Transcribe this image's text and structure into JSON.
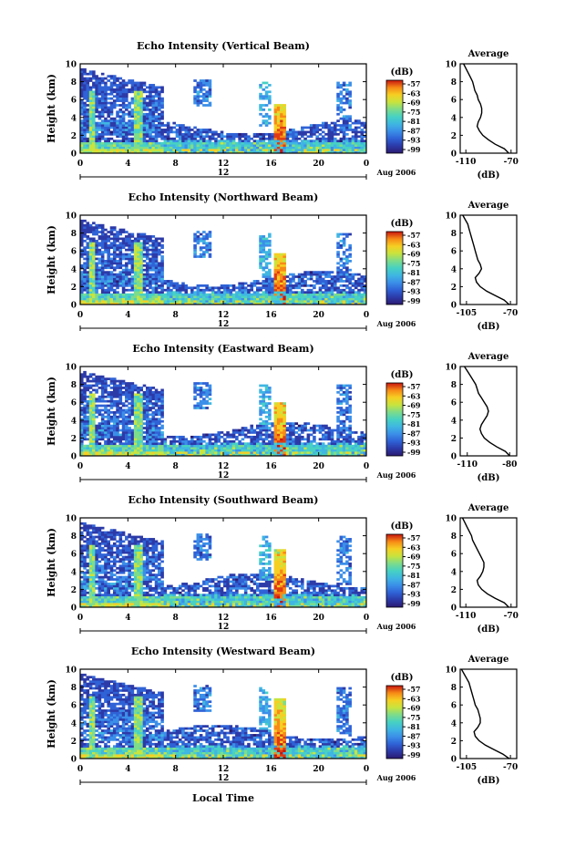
{
  "chart_data": [
    {
      "type": "heatmap",
      "title": "Echo Intensity (Vertical Beam)",
      "ylabel": "Height (km)",
      "ylim": [
        0,
        10
      ],
      "x_ticks": [
        "0",
        "4",
        "8",
        "12",
        "16",
        "20",
        "0"
      ],
      "date_label": "12",
      "date_note": "Aug 2006",
      "colorbar": {
        "unit": "(dB)",
        "ticks": [
          "-57",
          "-63",
          "-69",
          "-75",
          "-81",
          "-87",
          "-93",
          "-99"
        ]
      },
      "profile": {
        "title": "Average",
        "xlabel": "(dB)",
        "x_ticks": [
          "-110",
          "-70"
        ],
        "xlim": [
          -115,
          -65
        ],
        "heights": [
          0,
          0.5,
          1,
          1.5,
          2,
          2.5,
          3,
          3.5,
          4,
          4.5,
          5,
          5.5,
          6,
          6.5,
          7,
          7.5,
          8,
          8.5,
          9,
          9.5,
          10
        ],
        "values": [
          -72,
          -76,
          -84,
          -90,
          -95,
          -98,
          -100,
          -99,
          -97,
          -96,
          -96,
          -97,
          -99,
          -100,
          -102,
          -103,
          -104,
          -106,
          -108,
          -110,
          -112
        ]
      }
    },
    {
      "type": "heatmap",
      "title": "Echo Intensity (Northward Beam)",
      "ylabel": "Height (km)",
      "ylim": [
        0,
        10
      ],
      "x_ticks": [
        "0",
        "4",
        "8",
        "12",
        "16",
        "20",
        "0"
      ],
      "date_label": "12",
      "date_note": "Aug 2006",
      "colorbar": {
        "unit": "(dB)",
        "ticks": [
          "-57",
          "-63",
          "-69",
          "-75",
          "-81",
          "-87",
          "-93",
          "-99"
        ]
      },
      "profile": {
        "title": "Average",
        "xlabel": "(dB)",
        "x_ticks": [
          "-105",
          "-70"
        ],
        "xlim": [
          -110,
          -65
        ],
        "heights": [
          0,
          0.5,
          1,
          1.5,
          2,
          2.5,
          3,
          3.5,
          4,
          4.5,
          5,
          5.5,
          6,
          6.5,
          7,
          7.5,
          8,
          8.5,
          9,
          9.5,
          10
        ],
        "values": [
          -71,
          -75,
          -82,
          -89,
          -94,
          -97,
          -98,
          -95,
          -93,
          -94,
          -96,
          -97,
          -98,
          -99,
          -100,
          -101,
          -102,
          -103,
          -104,
          -106,
          -108
        ]
      }
    },
    {
      "type": "heatmap",
      "title": "Echo Intensity (Eastward Beam)",
      "ylabel": "Height (km)",
      "ylim": [
        0,
        10
      ],
      "x_ticks": [
        "0",
        "4",
        "8",
        "12",
        "16",
        "20",
        "0"
      ],
      "date_label": "12",
      "date_note": "Aug 2006",
      "colorbar": {
        "unit": "(dB)",
        "ticks": [
          "-57",
          "-63",
          "-69",
          "-75",
          "-81",
          "-87",
          "-93",
          "-99"
        ]
      },
      "profile": {
        "title": "Average",
        "xlabel": "(dB)",
        "x_ticks": [
          "-110",
          "-80"
        ],
        "xlim": [
          -115,
          -75
        ],
        "heights": [
          0,
          0.5,
          1,
          1.5,
          2,
          2.5,
          3,
          3.5,
          4,
          4.5,
          5,
          5.5,
          6,
          6.5,
          7,
          7.5,
          8,
          8.5,
          9,
          9.5,
          10
        ],
        "values": [
          -80,
          -83,
          -89,
          -94,
          -98,
          -100,
          -101,
          -100,
          -98,
          -96,
          -95,
          -96,
          -98,
          -100,
          -102,
          -103,
          -104,
          -106,
          -108,
          -110,
          -112
        ]
      }
    },
    {
      "type": "heatmap",
      "title": "Echo Intensity (Southward Beam)",
      "ylabel": "Height (km)",
      "ylim": [
        0,
        10
      ],
      "x_ticks": [
        "0",
        "4",
        "8",
        "12",
        "16",
        "20",
        "0"
      ],
      "date_label": "12",
      "date_note": "Aug 2006",
      "colorbar": {
        "unit": "(dB)",
        "ticks": [
          "-57",
          "-63",
          "-69",
          "-75",
          "-81",
          "-87",
          "-93",
          "-99"
        ]
      },
      "profile": {
        "title": "Average",
        "xlabel": "(dB)",
        "x_ticks": [
          "-110",
          "-70"
        ],
        "xlim": [
          -115,
          -65
        ],
        "heights": [
          0,
          0.5,
          1,
          1.5,
          2,
          2.5,
          3,
          3.5,
          4,
          4.5,
          5,
          5.5,
          6,
          6.5,
          7,
          7.5,
          8,
          8.5,
          9,
          9.5,
          10
        ],
        "values": [
          -72,
          -76,
          -84,
          -91,
          -96,
          -99,
          -100,
          -97,
          -95,
          -94,
          -94,
          -96,
          -98,
          -100,
          -102,
          -104,
          -105,
          -107,
          -109,
          -111,
          -113
        ]
      }
    },
    {
      "type": "heatmap",
      "title": "Echo Intensity (Westward Beam)",
      "ylabel": "Height (km)",
      "xlabel": "Local Time",
      "ylim": [
        0,
        10
      ],
      "x_ticks": [
        "0",
        "4",
        "8",
        "12",
        "16",
        "20",
        "0"
      ],
      "date_label": "12",
      "date_note": "Aug 2006",
      "colorbar": {
        "unit": "(dB)",
        "ticks": [
          "-57",
          "-63",
          "-69",
          "-75",
          "-81",
          "-87",
          "-93",
          "-99"
        ]
      },
      "profile": {
        "title": "Average",
        "xlabel": "(dB)",
        "x_ticks": [
          "-105",
          "-70"
        ],
        "xlim": [
          -110,
          -65
        ],
        "heights": [
          0,
          0.5,
          1,
          1.5,
          2,
          2.5,
          3,
          3.5,
          4,
          4.5,
          5,
          5.5,
          6,
          6.5,
          7,
          7.5,
          8,
          8.5,
          9,
          9.5,
          10
        ],
        "values": [
          -71,
          -76,
          -83,
          -90,
          -95,
          -98,
          -99,
          -96,
          -94,
          -94,
          -95,
          -96,
          -98,
          -99,
          -100,
          -101,
          -102,
          -103,
          -105,
          -107,
          -109
        ]
      }
    }
  ],
  "colors": {
    "colormap": [
      "#2b1a70",
      "#2c3aa8",
      "#2f62d6",
      "#3b8fe8",
      "#3fb6e2",
      "#47d1c3",
      "#7ddc8a",
      "#c8e43e",
      "#f6cf23",
      "#f78a16",
      "#e03a12",
      "#c8140e"
    ]
  }
}
